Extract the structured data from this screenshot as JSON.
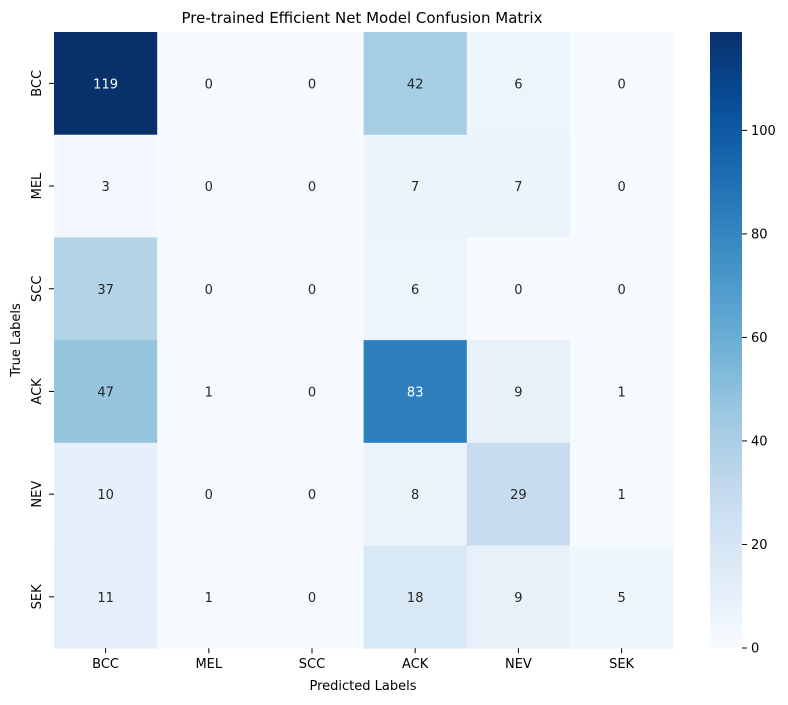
{
  "chart_data": {
    "type": "heatmap",
    "title": "Pre-trained Efficient Net Model Confusion Matrix",
    "xlabel": "Predicted Labels",
    "ylabel": "True Labels",
    "x_categories": [
      "BCC",
      "MEL",
      "SCC",
      "ACK",
      "NEV",
      "SEK"
    ],
    "y_categories": [
      "BCC",
      "MEL",
      "SCC",
      "ACK",
      "NEV",
      "SEK"
    ],
    "values": [
      [
        119,
        0,
        0,
        42,
        6,
        0
      ],
      [
        3,
        0,
        0,
        7,
        7,
        0
      ],
      [
        37,
        0,
        0,
        6,
        0,
        0
      ],
      [
        47,
        1,
        0,
        83,
        9,
        1
      ],
      [
        10,
        0,
        0,
        8,
        29,
        1
      ],
      [
        11,
        1,
        0,
        18,
        9,
        5
      ]
    ],
    "colormap": "Blues",
    "vmin": 0,
    "vmax": 119,
    "colorbar_ticks": [
      0,
      20,
      40,
      60,
      80,
      100
    ],
    "colors": {
      "low": "#f7fbff",
      "high": "#08306b",
      "text_dark": "#262626",
      "text_light": "#ffffff"
    }
  }
}
